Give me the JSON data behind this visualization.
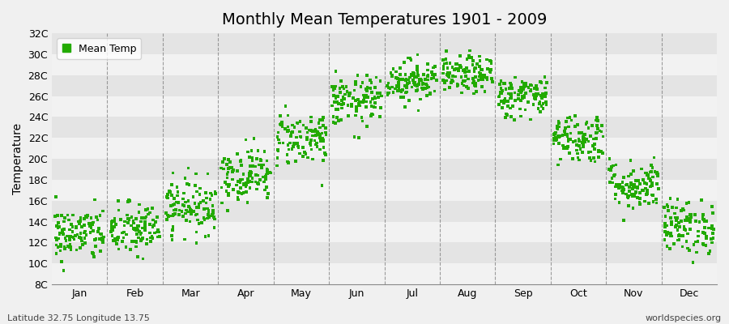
{
  "title": "Monthly Mean Temperatures 1901 - 2009",
  "ylabel": "Temperature",
  "subtitle": "Latitude 32.75 Longitude 13.75",
  "watermark": "worldspecies.org",
  "legend_label": "Mean Temp",
  "ytick_labels": [
    "8C",
    "10C",
    "12C",
    "14C",
    "16C",
    "18C",
    "20C",
    "22C",
    "24C",
    "26C",
    "28C",
    "30C",
    "32C"
  ],
  "ytick_values": [
    8,
    10,
    12,
    14,
    16,
    18,
    20,
    22,
    24,
    26,
    28,
    30,
    32
  ],
  "ylim": [
    8,
    32
  ],
  "months": [
    "Jan",
    "Feb",
    "Mar",
    "Apr",
    "May",
    "Jun",
    "Jul",
    "Aug",
    "Sep",
    "Oct",
    "Nov",
    "Dec"
  ],
  "month_means": [
    12.8,
    13.2,
    15.5,
    18.5,
    22.0,
    25.5,
    27.5,
    28.0,
    26.0,
    22.0,
    17.5,
    13.5
  ],
  "month_stds": [
    1.3,
    1.3,
    1.3,
    1.3,
    1.3,
    1.2,
    1.0,
    0.9,
    1.0,
    1.2,
    1.2,
    1.3
  ],
  "n_years": 109,
  "dot_color": "#22aa00",
  "dot_size": 7,
  "bg_color": "#f0f0f0",
  "band_color_light": "#f2f2f2",
  "band_color_dark": "#e4e4e4",
  "vline_color": "#777777",
  "title_fontsize": 14,
  "axis_fontsize": 10,
  "tick_fontsize": 9,
  "subtitle_fontsize": 8,
  "watermark_fontsize": 8
}
